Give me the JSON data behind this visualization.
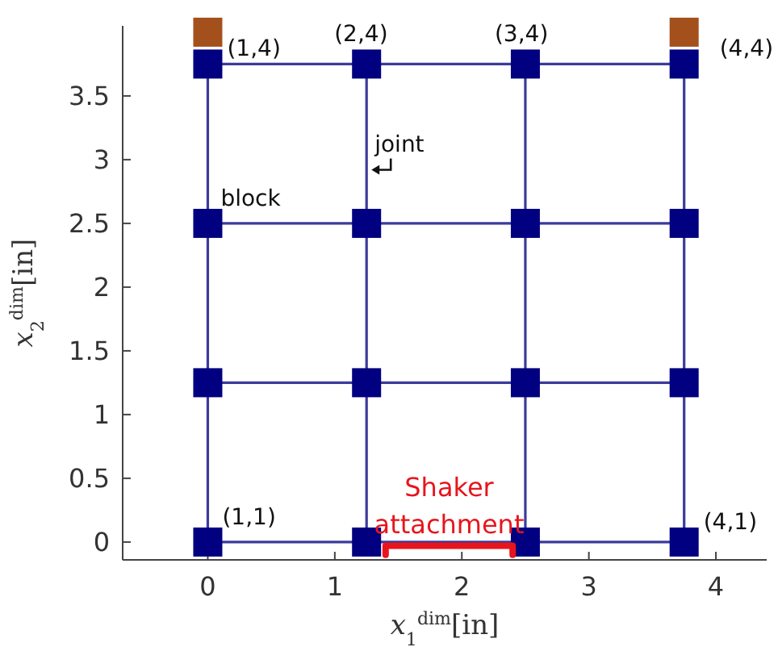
{
  "chart_data": {
    "type": "scatter",
    "xlabel": "x$_{1}$$^{dim}$[in]",
    "ylabel": "x$_{2}$$^{dim}$[in]",
    "xlim": [
      -0.67,
      4.4
    ],
    "ylim": [
      -0.14,
      4.05
    ],
    "xticks": [
      0,
      1,
      2,
      3,
      4
    ],
    "yticks": [
      0,
      0.5,
      1,
      1.5,
      2,
      2.5,
      3,
      3.5
    ],
    "series": [
      {
        "type": "line",
        "color": "#3b3b9c",
        "marker": "none",
        "x": [
          0,
          3.75
        ],
        "values": [
          0,
          0
        ]
      },
      {
        "type": "line",
        "color": "#3b3b9c",
        "marker": "none",
        "x": [
          0,
          3.75
        ],
        "values": [
          1.25,
          1.25
        ]
      },
      {
        "type": "line",
        "color": "#3b3b9c",
        "marker": "none",
        "x": [
          0,
          3.75
        ],
        "values": [
          2.5,
          2.5
        ]
      },
      {
        "type": "line",
        "color": "#3b3b9c",
        "marker": "none",
        "x": [
          0,
          3.75
        ],
        "values": [
          3.75,
          3.75
        ]
      },
      {
        "type": "line",
        "color": "#3b3b9c",
        "marker": "none",
        "x": [
          0,
          0
        ],
        "values": [
          0,
          3.75
        ]
      },
      {
        "type": "line",
        "color": "#3b3b9c",
        "marker": "none",
        "x": [
          1.25,
          1.25
        ],
        "values": [
          0,
          3.75
        ]
      },
      {
        "type": "line",
        "color": "#3b3b9c",
        "marker": "none",
        "x": [
          2.5,
          2.5
        ],
        "values": [
          0,
          3.75
        ]
      },
      {
        "type": "line",
        "color": "#3b3b9c",
        "marker": "none",
        "x": [
          3.75,
          3.75
        ],
        "values": [
          0,
          3.75
        ]
      },
      {
        "color": "#000080",
        "marker": "square",
        "x": [
          0,
          1.25,
          2.5,
          3.75,
          0,
          1.25,
          2.5,
          3.75,
          0,
          1.25,
          2.5,
          3.75,
          0,
          1.25,
          2.5,
          3.75
        ],
        "values": [
          0,
          0,
          0,
          0,
          1.25,
          1.25,
          1.25,
          1.25,
          2.5,
          2.5,
          2.5,
          2.5,
          3.75,
          3.75,
          3.75,
          3.75
        ]
      },
      {
        "color": "#a4501c",
        "marker": "square",
        "x": [
          0,
          3.75
        ],
        "values": [
          4.0,
          4.0
        ]
      },
      {
        "type": "line",
        "name": "Shaker attachment",
        "color": "#e8141c",
        "marker": "none",
        "x": [
          1.4,
          1.4,
          2.4,
          2.4
        ],
        "values": [
          -0.1,
          -0.03,
          -0.03,
          -0.1
        ]
      }
    ],
    "annotations": [
      {
        "text": "(1,4)",
        "x": 0,
        "y": 3.75
      },
      {
        "text": "(2,4)",
        "x": 1.25,
        "y": 3.75
      },
      {
        "text": "(3,4)",
        "x": 2.5,
        "y": 3.75
      },
      {
        "text": "(4,4)",
        "x": 3.75,
        "y": 3.75
      },
      {
        "text": "joint",
        "x": 1.25,
        "y": 2.92
      },
      {
        "text": "block",
        "x": 0,
        "y": 2.5
      },
      {
        "text": "(1,1)",
        "x": 0,
        "y": 0
      },
      {
        "text": "(4,1)",
        "x": 3.75,
        "y": 0
      }
    ]
  }
}
